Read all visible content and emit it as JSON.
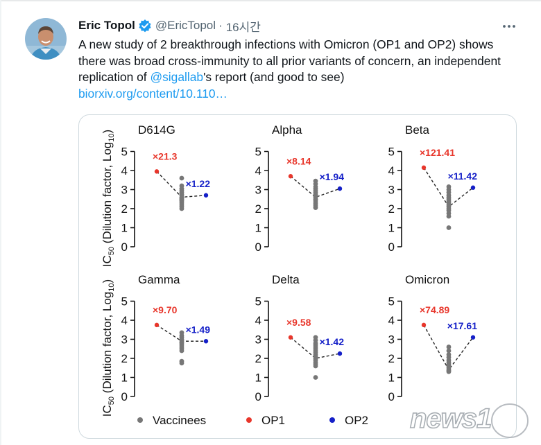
{
  "tweet": {
    "author_name": "Eric Topol",
    "handle": "@EricTopol",
    "separator": "·",
    "time": "16시간",
    "text_part1": "A new study of 2 breakthrough infections with Omicron (OP1 and OP2) shows there was broad cross-immunity to all prior variants of concern, an independent replication of ",
    "mention": "@sigallab",
    "text_part2": "'s report (and good to see)",
    "link": "biorxiv.org/content/10.110…"
  },
  "watermark": {
    "brand": "news1"
  },
  "colors": {
    "vaccinees": "#777777",
    "op1": "#e8362b",
    "op2": "#1520c8",
    "link": "#1d9bf0"
  },
  "chart_data": {
    "type": "scatter",
    "y_axis_label": "IC50 (Dilution factor, Log10)",
    "y_ticks": [
      0,
      1,
      2,
      3,
      4,
      5
    ],
    "ylim": [
      0,
      5
    ],
    "legend": [
      {
        "label": "Vaccinees",
        "series": "vaccinees"
      },
      {
        "label": "OP1",
        "series": "op1"
      },
      {
        "label": "OP2",
        "series": "op2"
      }
    ],
    "panels": [
      {
        "title": "D614G",
        "op1": 3.95,
        "op2": 2.7,
        "vaccinee_mean": 2.6,
        "op1_label": "×21.3",
        "op2_label": "×1.22",
        "vaccinees": [
          3.6,
          3.2,
          3.05,
          2.95,
          2.85,
          2.75,
          2.7,
          2.6,
          2.55,
          2.5,
          2.45,
          2.4,
          2.3,
          2.2,
          2.1,
          2.0
        ]
      },
      {
        "title": "Alpha",
        "op1": 3.7,
        "op2": 3.05,
        "vaccinee_mean": 2.6,
        "op1_label": "×8.14",
        "op2_label": "×1.94",
        "vaccinees": [
          3.45,
          3.3,
          3.15,
          3.05,
          2.95,
          2.85,
          2.75,
          2.65,
          2.6,
          2.5,
          2.45,
          2.35,
          2.25,
          2.15,
          2.05
        ]
      },
      {
        "title": "Beta",
        "op1": 4.15,
        "op2": 3.1,
        "vaccinee_mean": 2.1,
        "op1_label": "×121.41",
        "op2_label": "×11.42",
        "vaccinees": [
          3.15,
          3.0,
          2.85,
          2.7,
          2.6,
          2.5,
          2.4,
          2.3,
          2.2,
          2.1,
          2.0,
          1.9,
          1.75,
          1.6,
          1.0
        ]
      },
      {
        "title": "Gamma",
        "op1": 3.75,
        "op2": 2.9,
        "vaccinee_mean": 2.9,
        "op1_label": "×9.70",
        "op2_label": "×1.49",
        "vaccinees": [
          3.35,
          3.2,
          3.1,
          3.0,
          2.95,
          2.85,
          2.8,
          2.7,
          2.6,
          2.5,
          2.4,
          1.85,
          1.75
        ]
      },
      {
        "title": "Delta",
        "op1": 3.1,
        "op2": 2.25,
        "vaccinee_mean": 2.0,
        "op1_label": "×9.58",
        "op2_label": "×1.42",
        "vaccinees": [
          3.1,
          2.95,
          2.8,
          2.7,
          2.6,
          2.5,
          2.4,
          2.3,
          2.2,
          2.1,
          2.0,
          1.9,
          1.8,
          1.7,
          1.6,
          1.0
        ]
      },
      {
        "title": "Omicron",
        "op1": 3.75,
        "op2": 3.1,
        "vaccinee_mean": 1.4,
        "op1_label": "×74.89",
        "op2_label": "×17.61",
        "vaccinees": [
          2.6,
          2.4,
          2.2,
          2.05,
          1.9,
          1.8,
          1.7,
          1.6,
          1.5,
          1.4,
          1.35,
          1.3
        ]
      }
    ]
  }
}
